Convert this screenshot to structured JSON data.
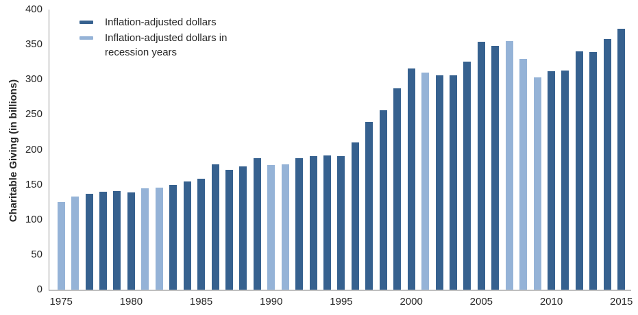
{
  "chart": {
    "y_axis_title": "Charitable Giving (in billions)"
  },
  "chart_data": {
    "type": "bar",
    "title": "",
    "xlabel": "",
    "ylabel": "Charitable Giving (in billions)",
    "ylim": [
      0,
      400
    ],
    "ytick_step": 50,
    "grid": false,
    "legend_position": "top-left-inside",
    "legend": [
      "Inflation-adjusted dollars",
      "Inflation-adjusted dollars in recession years"
    ],
    "colors": {
      "normal": "#36618F",
      "recession": "#95B3D7"
    },
    "axis_colors": {
      "y_axis_line": "#8C8C8C",
      "x_axis_line": "#BFBFBF",
      "text": "#262626"
    },
    "x": [
      1975,
      1976,
      1977,
      1978,
      1979,
      1980,
      1981,
      1982,
      1983,
      1984,
      1985,
      1986,
      1987,
      1988,
      1989,
      1990,
      1991,
      1992,
      1993,
      1994,
      1995,
      1996,
      1997,
      1998,
      1999,
      2000,
      2001,
      2002,
      2003,
      2004,
      2005,
      2006,
      2007,
      2008,
      2009,
      2010,
      2011,
      2012,
      2013,
      2014,
      2015
    ],
    "values": [
      125,
      133,
      137,
      140,
      141,
      139,
      145,
      146,
      150,
      155,
      158,
      179,
      171,
      176,
      188,
      178,
      179,
      188,
      191,
      192,
      191,
      210,
      240,
      256,
      288,
      316,
      310,
      306,
      306,
      326,
      354,
      348,
      355,
      330,
      303,
      312,
      313,
      340,
      339,
      358,
      373
    ],
    "recession_years": [
      1975,
      1976,
      1981,
      1982,
      1990,
      1991,
      2001,
      2007,
      2008,
      2009
    ],
    "x_tick_labels": [
      1975,
      1980,
      1985,
      1990,
      1995,
      2000,
      2005,
      2010,
      2015
    ],
    "y_tick_labels": [
      0,
      50,
      100,
      150,
      200,
      250,
      300,
      350,
      400
    ]
  }
}
